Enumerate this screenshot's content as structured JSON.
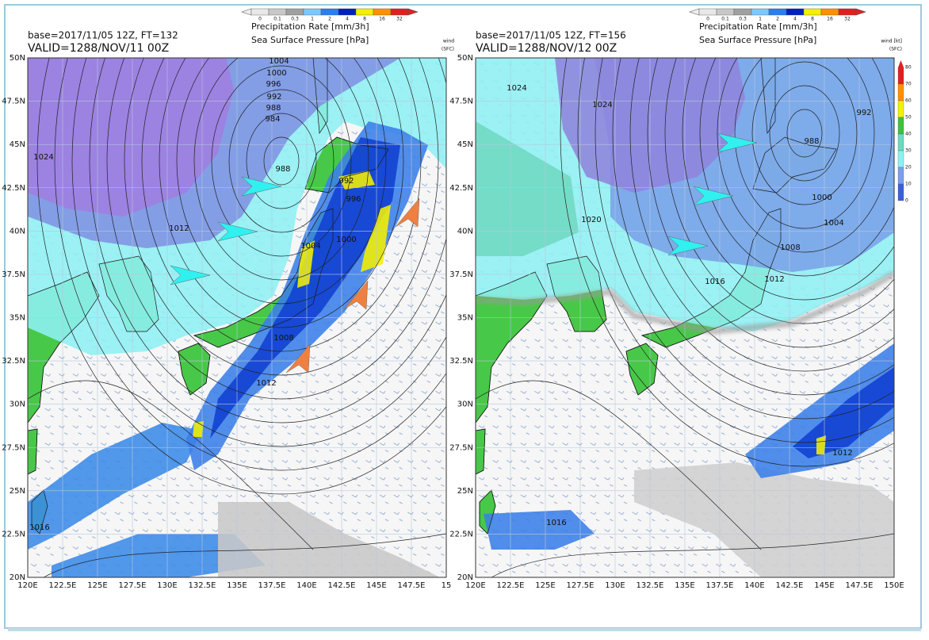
{
  "panels": [
    {
      "base": "base=2017/11/05 12Z, FT=132",
      "valid": "VALID=1288/NOV/11 00Z",
      "precip_colorbar": {
        "labels": [
          "0",
          "0.1",
          "0.3",
          "1",
          "2",
          "4",
          "8",
          "16",
          "32"
        ],
        "title": "Precipitation Rate [mm/3h]"
      },
      "pressure_title": "Sea Surface Pressure [hPa]",
      "wind_label": [
        "wind",
        "(SFC)"
      ],
      "lat_labels": [
        "50N",
        "47.5N",
        "45N",
        "42.5N",
        "40N",
        "37.5N",
        "35N",
        "32.5N",
        "30N",
        "27.5N",
        "25N",
        "22.5N",
        "20N"
      ],
      "lon_labels": [
        "120E",
        "122.5E",
        "125E",
        "127.5E",
        "130E",
        "132.5E",
        "135E",
        "137.5E",
        "140E",
        "142.5E",
        "145E",
        "147.5E",
        "15"
      ],
      "isobar_labels": [
        "1004",
        "1000",
        "996",
        "992",
        "988",
        "984",
        "988",
        "992",
        "996",
        "1000",
        "1004",
        "1008",
        "1012",
        "1024",
        "1012",
        "1016"
      ]
    },
    {
      "base": "base=2017/11/05 12Z, FT=156",
      "valid": "VALID=1288/NOV/12 00Z",
      "precip_colorbar": {
        "labels": [
          "0",
          "0.1",
          "0.3",
          "1",
          "2",
          "4",
          "8",
          "16",
          "32"
        ],
        "title": "Precipitation Rate [mm/3h]"
      },
      "pressure_title": "Sea Surface Pressure [hPa]",
      "wind_label": [
        "wind [kt]",
        "(SFC)"
      ],
      "wind_colorbar_labels": [
        "80",
        "70",
        "60",
        "50",
        "40",
        "30",
        "20",
        "10",
        "0"
      ],
      "lat_labels": [
        "50N",
        "47.5N",
        "45N",
        "42.5N",
        "40N",
        "37.5N",
        "35N",
        "32.5N",
        "30N",
        "27.5N",
        "25N",
        "22.5N",
        "20N"
      ],
      "lon_labels": [
        "120E",
        "122.5E",
        "125E",
        "127.5E",
        "130E",
        "132.5E",
        "135E",
        "137.5E",
        "140E",
        "142.5E",
        "145E",
        "147.5E",
        "150E"
      ],
      "isobar_labels": [
        "1024",
        "1024",
        "992",
        "988",
        "1020",
        "1000",
        "1004",
        "1008",
        "1012",
        "1016",
        "1012",
        "1016"
      ]
    }
  ]
}
